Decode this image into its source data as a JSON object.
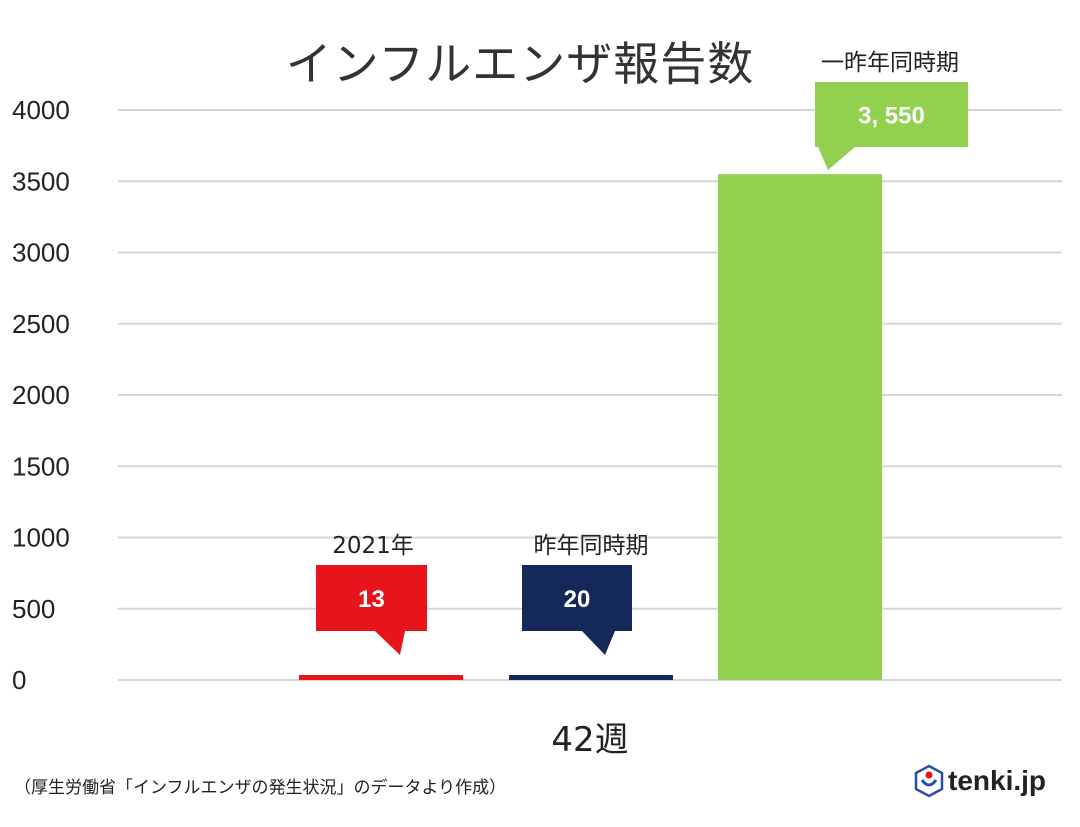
{
  "chart_data": {
    "type": "bar",
    "title": "インフルエンザ報告数",
    "xlabel": "42週",
    "ylabel": "",
    "ylim": [
      0,
      4000
    ],
    "yticks": [
      0,
      500,
      1000,
      1500,
      2000,
      2500,
      3000,
      3500,
      4000
    ],
    "grid": true,
    "categories": [
      "2021年",
      "昨年同時期",
      "一昨年同時期"
    ],
    "values": [
      13,
      20,
      3550
    ],
    "data_labels": [
      "13",
      "20",
      "3, 550"
    ],
    "colors": [
      "#e8141b",
      "#14285a",
      "#92d050"
    ]
  },
  "footer": {
    "source": "（厚生労働省「インフルエンザの発生状況」のデータより作成）",
    "logo_text": "tenki.jp"
  }
}
